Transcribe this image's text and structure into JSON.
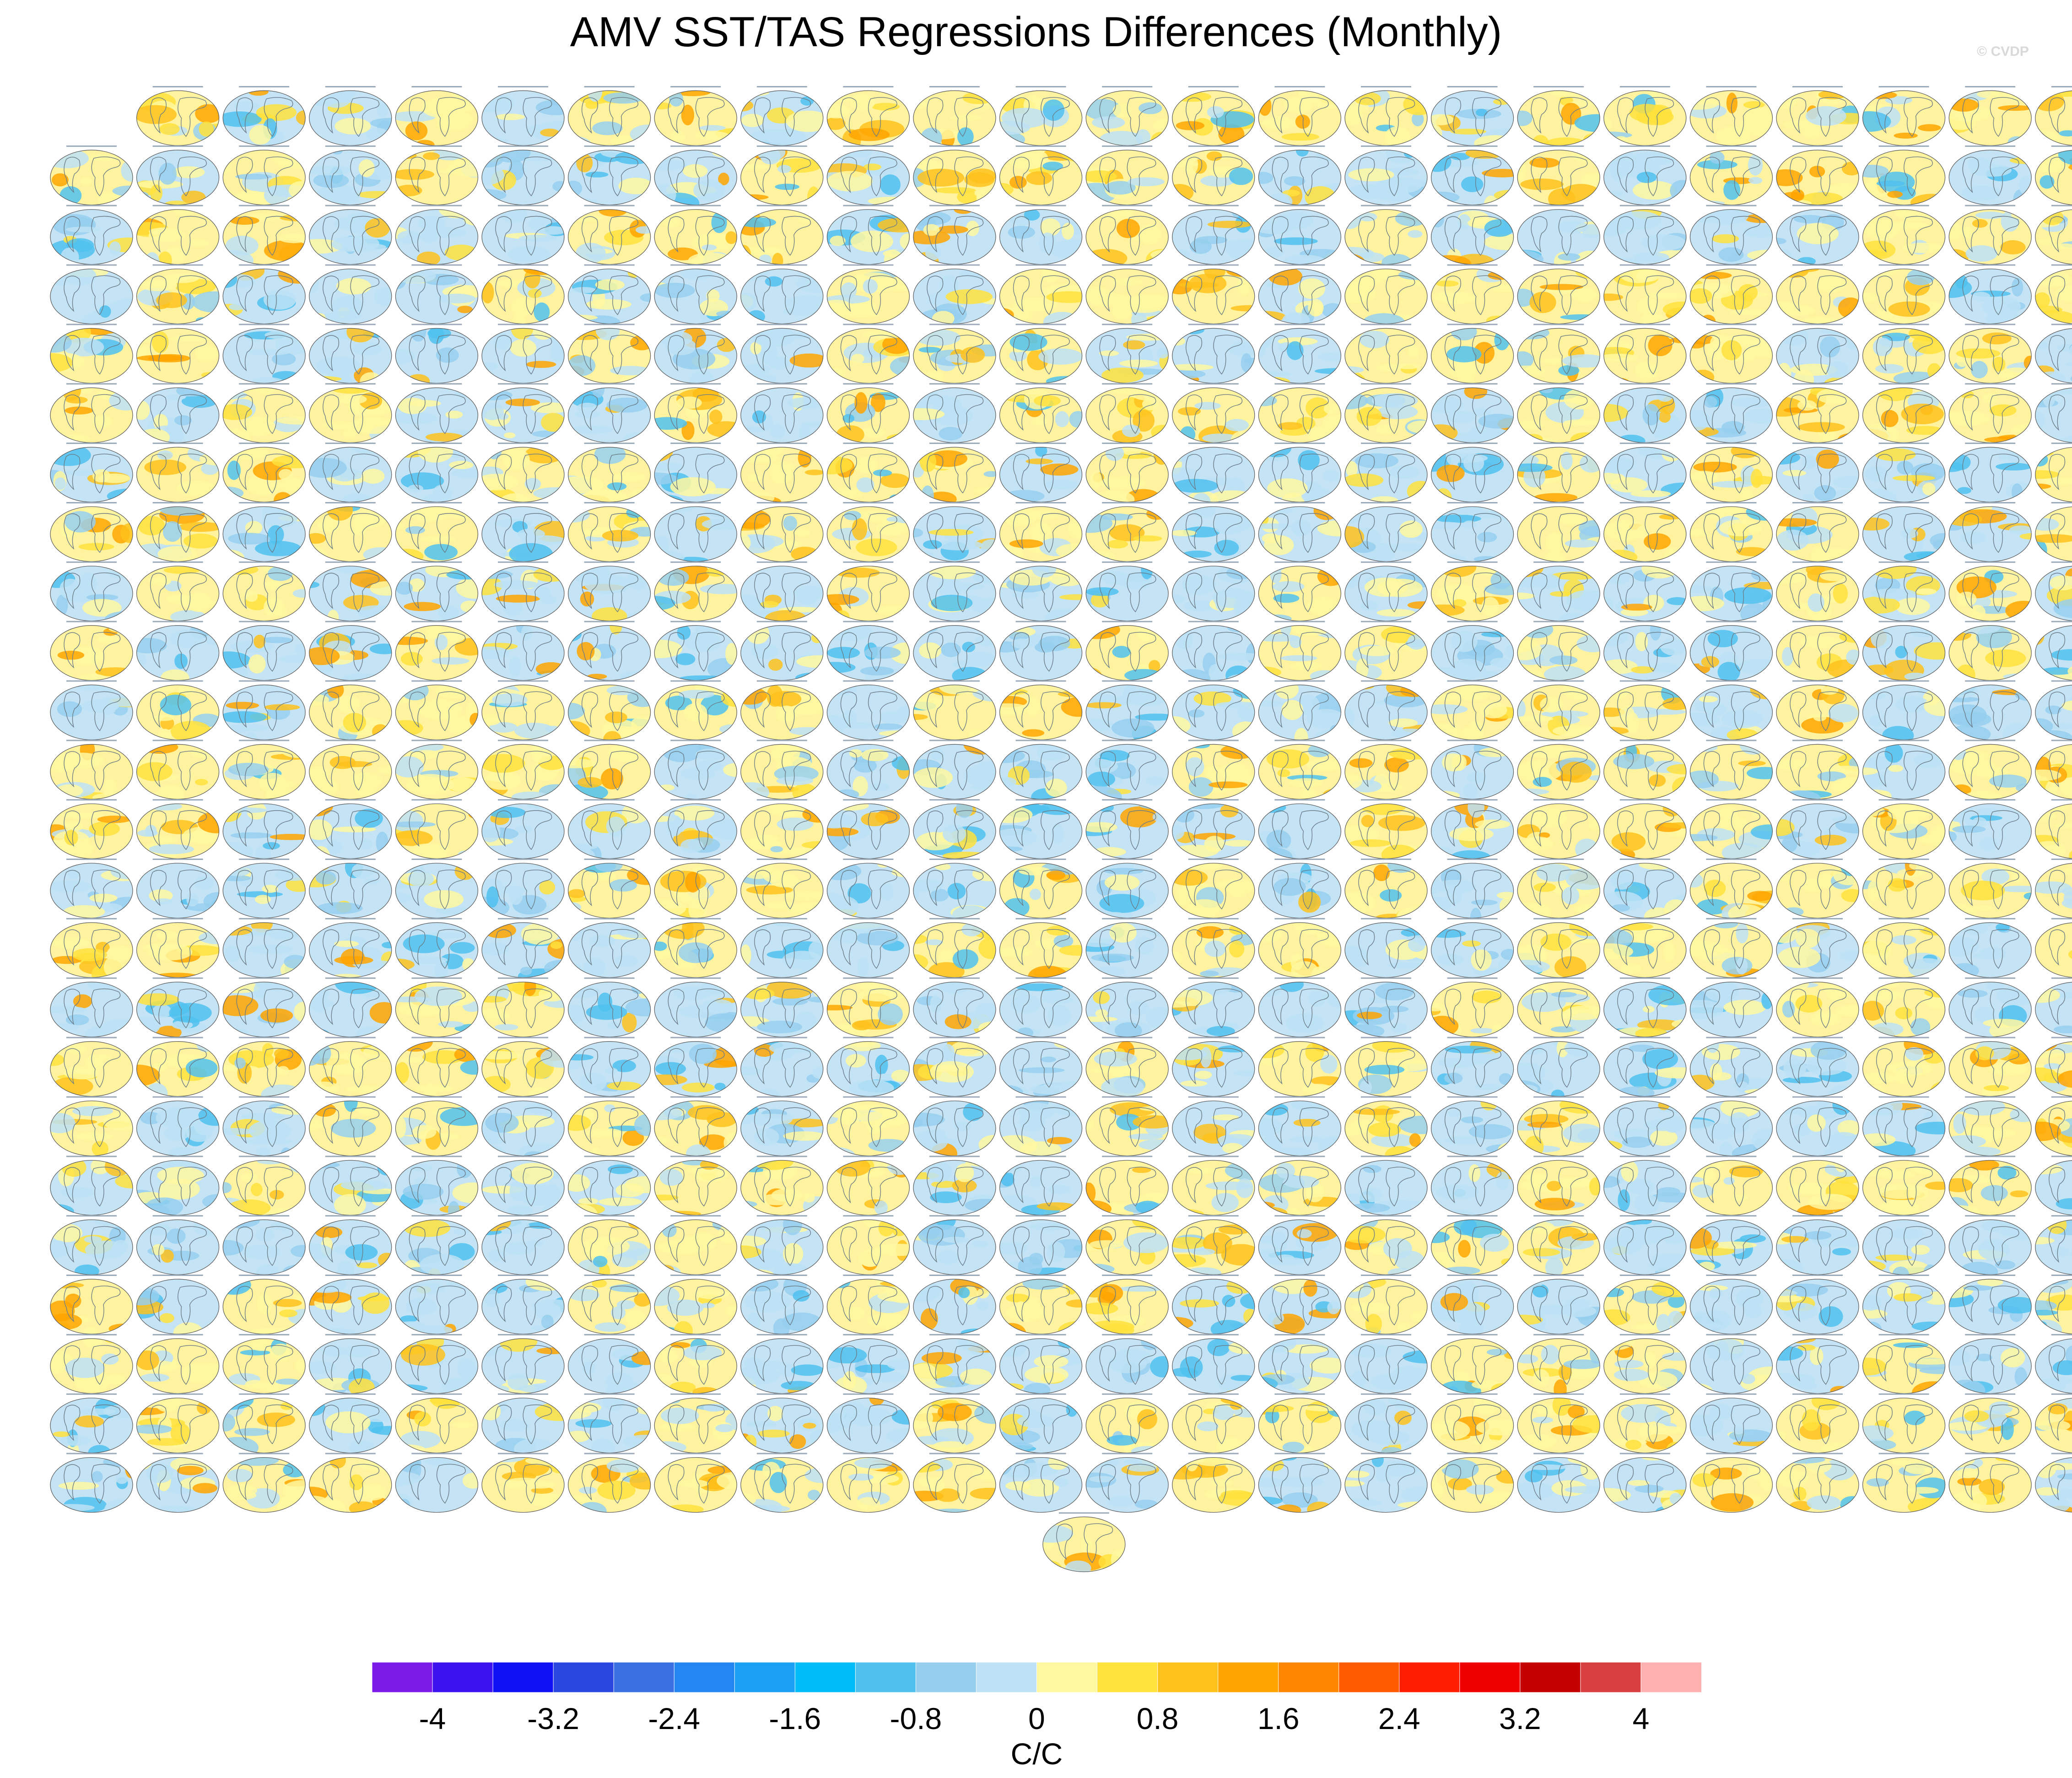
{
  "title": "AMV SST/TAS Regressions Differences (Monthly)",
  "copyright": "© CVDP",
  "chart_data": {
    "type": "heatmap",
    "title": "AMV SST/TAS Regressions Differences (Monthly)",
    "layout": {
      "columns": 24,
      "rows": 25,
      "first_row_panels": 23,
      "last_row_panels": 1,
      "total_panels": 576
    },
    "panel_content": "global map",
    "colorbar": {
      "units": "C/C",
      "levels": [
        -4.4,
        -4,
        -3.6,
        -3.2,
        -2.8,
        -2.4,
        -2,
        -1.6,
        -1.2,
        -0.8,
        -0.4,
        0,
        0.4,
        0.8,
        1.2,
        1.6,
        2,
        2.4,
        2.8,
        3.2,
        3.6,
        4,
        4.4
      ],
      "tick_labels": [
        "-4",
        "-3.2",
        "-2.4",
        "-1.6",
        "-0.8",
        "0",
        "0.8",
        "1.6",
        "2.4",
        "3.2",
        "4"
      ],
      "colors": [
        "#7b1be8",
        "#3c12ee",
        "#1010f5",
        "#2a48e0",
        "#3a70e2",
        "#2486f0",
        "#1aa0f2",
        "#00bcf8",
        "#50c1ef",
        "#96cfee",
        "#bde2f5",
        "#fff8a0",
        "#ffe23c",
        "#fec21c",
        "#ffa500",
        "#ff8600",
        "#ff5a00",
        "#ff1e00",
        "#ee0000",
        "#c40000",
        "#d84040",
        "#ffb0b0"
      ]
    }
  }
}
